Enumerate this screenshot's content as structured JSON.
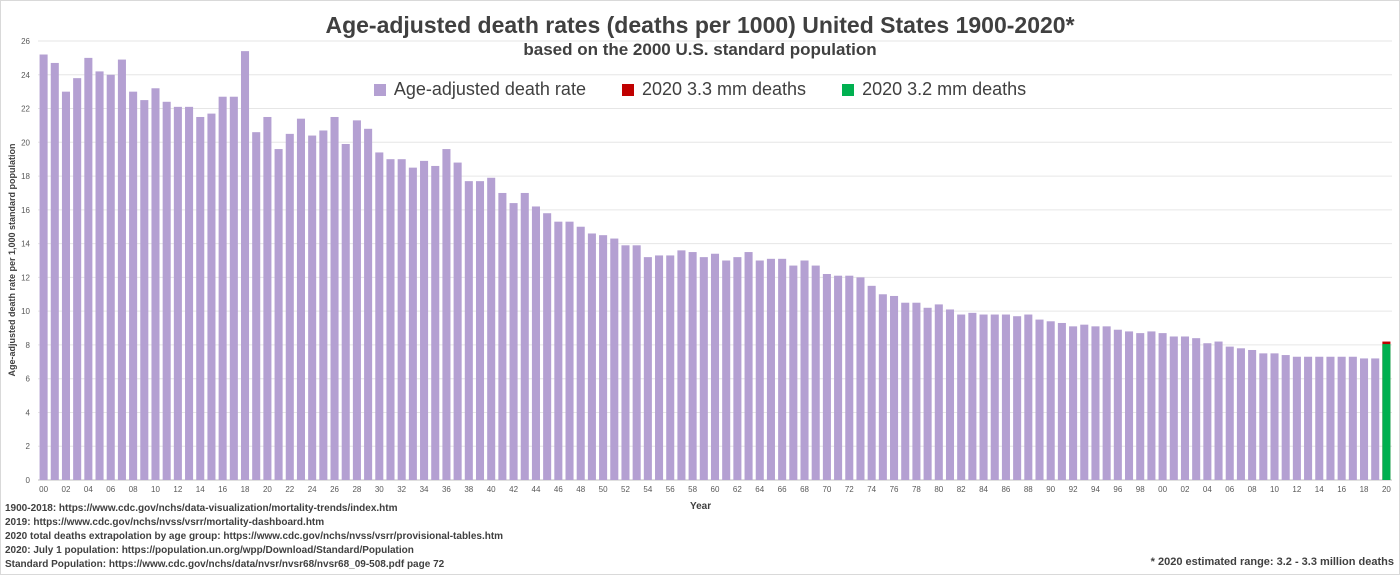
{
  "chart_data": {
    "type": "bar",
    "title": "Age-adjusted death rates (deaths per 1000) United States 1900-2020*",
    "subtitle": "based on the 2000 U.S. standard population",
    "xlabel": "Year",
    "ylabel": "Age-adjusted death rate per 1,000 standard population",
    "ylim": [
      0,
      26
    ],
    "yticks": [
      0,
      2,
      4,
      6,
      8,
      10,
      12,
      14,
      16,
      18,
      20,
      22,
      24,
      26
    ],
    "grid": true,
    "legend_position": "top",
    "x_start": 1900,
    "x_end": 2020,
    "series": [
      {
        "name": "Age-adjusted death rate",
        "color": "#b4a0d2",
        "values": [
          25.2,
          24.7,
          23.0,
          23.8,
          25.0,
          24.2,
          24.0,
          24.9,
          23.0,
          22.5,
          23.2,
          22.4,
          22.1,
          22.1,
          21.5,
          21.7,
          22.7,
          22.7,
          25.4,
          20.6,
          21.5,
          19.6,
          20.5,
          21.4,
          20.4,
          20.7,
          21.5,
          19.9,
          21.3,
          20.8,
          19.4,
          19.0,
          19.0,
          18.5,
          18.9,
          18.6,
          19.6,
          18.8,
          17.7,
          17.7,
          17.9,
          17.0,
          16.4,
          17.0,
          16.2,
          15.8,
          15.3,
          15.3,
          15.0,
          14.6,
          14.5,
          14.3,
          13.9,
          13.9,
          13.2,
          13.3,
          13.3,
          13.6,
          13.5,
          13.2,
          13.4,
          13.0,
          13.2,
          13.5,
          13.0,
          13.1,
          13.1,
          12.7,
          13.0,
          12.7,
          12.2,
          12.1,
          12.1,
          12.0,
          11.5,
          11.0,
          10.9,
          10.5,
          10.5,
          10.2,
          10.4,
          10.1,
          9.8,
          9.9,
          9.8,
          9.8,
          9.8,
          9.7,
          9.8,
          9.5,
          9.4,
          9.3,
          9.1,
          9.2,
          9.1,
          9.1,
          8.9,
          8.8,
          8.7,
          8.8,
          8.7,
          8.5,
          8.5,
          8.4,
          8.1,
          8.2,
          7.9,
          7.8,
          7.7,
          7.5,
          7.5,
          7.4,
          7.3,
          7.3,
          7.3,
          7.3,
          7.3,
          7.3,
          7.2,
          7.2,
          null
        ]
      },
      {
        "name": "2020 3.3 mm deaths",
        "color": "#c00000",
        "year": 2020,
        "value": 8.2
      },
      {
        "name": "2020 3.2 mm deaths",
        "color": "#00b050",
        "year": 2020,
        "value": 8.05
      }
    ]
  },
  "notes": [
    "1900-2018: https://www.cdc.gov/nchs/data-visualization/mortality-trends/index.htm",
    "2019: https://www.cdc.gov/nchs/nvss/vsrr/mortality-dashboard.htm",
    "2020 total deaths extrapolation by age group: https://www.cdc.gov/nchs/nvss/vsrr/provisional-tables.htm",
    "2020: July 1 population: https://population.un.org/wpp/Download/Standard/Population",
    "Standard Population: https://www.cdc.gov/nchs/data/nvsr/nvsr68/nvsr68_09-508.pdf   page 72"
  ],
  "footnote": "* 2020 estimated range: 3.2 - 3.3 million deaths"
}
